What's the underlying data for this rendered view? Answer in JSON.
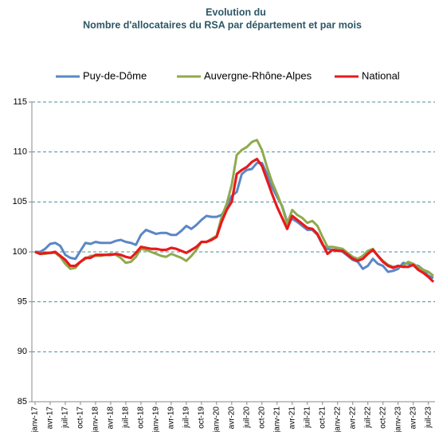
{
  "chart_data": {
    "type": "line",
    "title": [
      "Evolution du",
      "Nombre d'allocataires du RSA par département et par mois"
    ],
    "categories": [
      "janv-17",
      null,
      null,
      "avr-17",
      null,
      null,
      "juil-17",
      null,
      null,
      "oct-17",
      null,
      null,
      "janv-18",
      null,
      null,
      "avr-18",
      null,
      null,
      "juil-18",
      null,
      null,
      "oct-18",
      null,
      null,
      "janv-19",
      null,
      null,
      "avr-19",
      null,
      null,
      "juil-19",
      null,
      null,
      "oct-19",
      null,
      null,
      "janv-20",
      null,
      null,
      "avr-20",
      null,
      null,
      "juil-20",
      null,
      null,
      "oct-20",
      null,
      null,
      "janv-21",
      null,
      null,
      "avr-21",
      null,
      null,
      "juil-21",
      null,
      null,
      "oct-21",
      null,
      null,
      "janv-22",
      null,
      null,
      "avr-22",
      null,
      null,
      "juil-22",
      null,
      null,
      "oct-22",
      null,
      null,
      "janv-23",
      null,
      null,
      "avr-23",
      null,
      null,
      "juil-23",
      null
    ],
    "series": [
      {
        "name": "Puy-de-Dôme",
        "color": "#5b87c5",
        "values": [
          100,
          100.0,
          100.3,
          100.8,
          100.9,
          100.6,
          99.7,
          99.4,
          99.3,
          100.1,
          100.9,
          100.8,
          101.0,
          100.9,
          100.9,
          100.9,
          101.1,
          101.2,
          101.0,
          100.9,
          100.7,
          101.7,
          102.2,
          102.0,
          101.8,
          101.9,
          101.9,
          101.7,
          101.7,
          102.1,
          102.6,
          102.3,
          102.7,
          103.2,
          103.6,
          103.5,
          103.5,
          103.7,
          104.5,
          105.6,
          106.0,
          107.8,
          108.2,
          108.3,
          108.9,
          108.9,
          107.8,
          106.5,
          105.5,
          104.6,
          103.0,
          103.3,
          103.0,
          102.6,
          102.2,
          102.2,
          101.7,
          100.7,
          100.3,
          100.2,
          100.2,
          100.0,
          99.6,
          99.2,
          99.0,
          98.3,
          98.6,
          99.3,
          98.8,
          98.6,
          98.0,
          98.1,
          98.3,
          98.9,
          98.8,
          98.7,
          98.6,
          98.2,
          97.6,
          97.4
        ]
      },
      {
        "name": "Auvergne-Rhône-Alpes",
        "color": "#8faa4c",
        "values": [
          100,
          99.8,
          99.8,
          99.9,
          99.9,
          99.5,
          98.8,
          98.3,
          98.4,
          99.0,
          99.3,
          99.6,
          99.6,
          99.6,
          99.7,
          99.8,
          99.7,
          99.4,
          98.9,
          99.0,
          99.5,
          100.3,
          100.2,
          100.0,
          99.8,
          99.6,
          99.5,
          99.8,
          99.6,
          99.4,
          99.1,
          99.6,
          100.2,
          101.0,
          101.0,
          101.3,
          101.6,
          103.5,
          104.8,
          106.7,
          109.7,
          110.2,
          110.5,
          111.0,
          111.2,
          110.2,
          108.5,
          107.0,
          105.8,
          104.5,
          102.8,
          104.2,
          103.7,
          103.4,
          102.9,
          103.1,
          102.6,
          101.5,
          100.5,
          100.5,
          100.4,
          100.3,
          99.9,
          99.5,
          99.3,
          99.6,
          100.1,
          100.3,
          99.6,
          99.1,
          98.7,
          98.5,
          98.5,
          98.6,
          99.0,
          98.8,
          98.5,
          98.2,
          98.0,
          97.6
        ]
      },
      {
        "name": "National",
        "color": "#e8191c",
        "values": [
          100,
          99.8,
          99.9,
          99.9,
          100,
          99.6,
          99.2,
          98.6,
          98.6,
          99.0,
          99.4,
          99.4,
          99.7,
          99.7,
          99.7,
          99.7,
          99.8,
          99.7,
          99.5,
          99.4,
          99.9,
          100.5,
          100.4,
          100.3,
          100.3,
          100.2,
          100.2,
          100.4,
          100.3,
          100.1,
          99.9,
          100.2,
          100.5,
          101.0,
          101.0,
          101.2,
          101.5,
          103.0,
          104.2,
          105.0,
          107.8,
          108.2,
          108.5,
          109.0,
          109.3,
          108.6,
          107.2,
          105.8,
          104.5,
          103.4,
          102.3,
          103.6,
          103.2,
          102.8,
          102.4,
          102.3,
          101.8,
          100.8,
          99.8,
          100.2,
          100.1,
          100.1,
          99.7,
          99.3,
          99.1,
          99.3,
          99.8,
          100.2,
          99.6,
          99.0,
          98.6,
          98.4,
          98.6,
          98.5,
          98.5,
          98.7,
          98.2,
          97.9,
          97.5,
          97.0
        ]
      }
    ],
    "ylim": [
      85,
      115
    ],
    "yticks": [
      85,
      90,
      95,
      100,
      105,
      110,
      115
    ],
    "grid": true,
    "legend": "top"
  }
}
